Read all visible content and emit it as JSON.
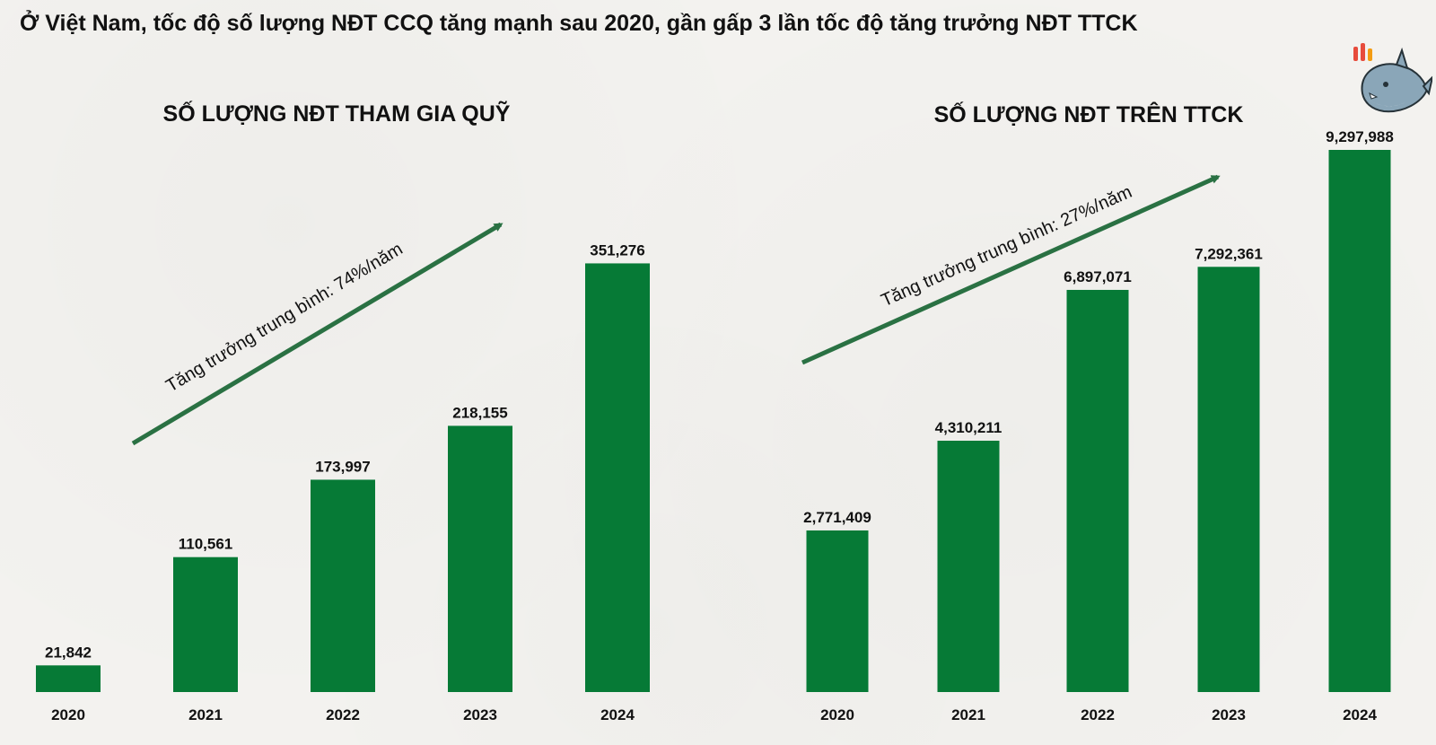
{
  "headline": "Ở Việt Nam, tốc độ số lượng NĐT CCQ tăng mạnh sau 2020, gần gấp 3 lần tốc độ tăng trưởng NĐT TTCK",
  "chart_data": [
    {
      "type": "bar",
      "title": "SỐ LƯỢNG NĐT THAM GIA QUỸ",
      "categories": [
        "2020",
        "2021",
        "2022",
        "2023",
        "2024"
      ],
      "values": [
        21842,
        110561,
        173997,
        218155,
        351276
      ],
      "value_labels": [
        "21,842",
        "110,561",
        "173,997",
        "218,155",
        "351,276"
      ],
      "ylim": [
        0,
        420000
      ],
      "grid": false,
      "annotation": "Tăng trưởng trung bình: 74%/năm",
      "bar_color": "#067a36",
      "arrow_color": "#2a7143"
    },
    {
      "type": "bar",
      "title": "SỐ LƯỢNG NĐT TRÊN TTCK",
      "categories": [
        "2020",
        "2021",
        "2022",
        "2023",
        "2024"
      ],
      "values": [
        2771409,
        4310211,
        6897071,
        7292361,
        9297988
      ],
      "value_labels": [
        "2,771,409",
        "4,310,211",
        "6,897,071",
        "7,292,361",
        "9,297,988"
      ],
      "ylim": [
        0,
        9297988
      ],
      "grid": false,
      "annotation": "Tăng trưởng trung bình: 27%/năm",
      "bar_color": "#067a36",
      "arrow_color": "#2a7143"
    }
  ],
  "mascot_icon": "shark-mascot-icon"
}
